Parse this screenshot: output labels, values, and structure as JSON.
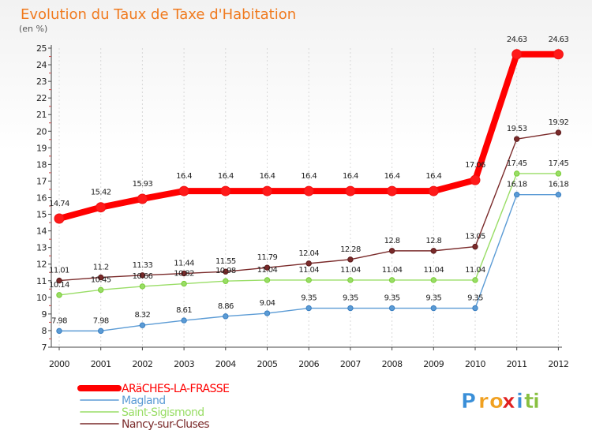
{
  "chart_data": {
    "type": "line",
    "title": "Evolution du Taux de Taxe d'Habitation",
    "unit_label": "(en %)",
    "categories": [
      "2000",
      "2001",
      "2002",
      "2003",
      "2004",
      "2005",
      "2006",
      "2007",
      "2008",
      "2009",
      "2010",
      "2011",
      "2012"
    ],
    "ylim": [
      7,
      25
    ],
    "yticks": [
      7,
      8,
      9,
      10,
      11,
      12,
      13,
      14,
      15,
      16,
      17,
      18,
      19,
      20,
      21,
      22,
      23,
      24,
      25
    ],
    "grid": "vertical",
    "legend_placement": "bottom-left",
    "series": [
      {
        "name": "ARäCHES-LA-FRASSE",
        "color": "#ff0000",
        "marker": "#ee1111",
        "values": [
          14.74,
          15.42,
          15.93,
          16.4,
          16.4,
          16.4,
          16.4,
          16.4,
          16.4,
          16.4,
          17.06,
          24.63,
          24.63
        ],
        "labels": [
          "14.74",
          "15.42",
          "15.93",
          "16.4",
          "16.4",
          "16.4",
          "16.4",
          "16.4",
          "16.4",
          "16.4",
          "17.06",
          "24.63",
          "24.63"
        ]
      },
      {
        "name": "Magland",
        "color": "#5b9bd5",
        "marker": "#3a7fc1",
        "values": [
          7.98,
          7.98,
          8.32,
          8.61,
          8.86,
          9.04,
          9.35,
          9.35,
          9.35,
          9.35,
          9.35,
          16.18,
          16.18
        ],
        "labels": [
          "7.98",
          "7.98",
          "8.32",
          "8.61",
          "8.86",
          "9.04",
          "9.35",
          "9.35",
          "9.35",
          "9.35",
          "9.35",
          "16.18",
          "16.18"
        ]
      },
      {
        "name": "Saint-Sigismond",
        "color": "#99dd66",
        "marker": "#77cc33",
        "values": [
          10.14,
          10.45,
          10.66,
          10.82,
          10.98,
          11.04,
          11.04,
          11.04,
          11.04,
          11.04,
          11.04,
          17.45,
          17.45
        ],
        "labels": [
          "10.14",
          "10.45",
          "10.66",
          "10.82",
          "10.98",
          "11.04",
          "11.04",
          "11.04",
          "11.04",
          "11.04",
          "11.04",
          "17.45",
          "17.45"
        ]
      },
      {
        "name": "Nancy-sur-Cluses",
        "color": "#7a2a2a",
        "marker": "#5c1a1a",
        "values": [
          11.01,
          11.2,
          11.33,
          11.44,
          11.55,
          11.79,
          12.04,
          12.28,
          12.8,
          12.8,
          13.05,
          19.53,
          19.92
        ],
        "labels": [
          "11.01",
          "11.2",
          "11.33",
          "11.44",
          "11.55",
          "11.79",
          "12.04",
          "12.28",
          "12.8",
          "12.8",
          "13.05",
          "19.53",
          "19.92"
        ]
      }
    ]
  },
  "logo": {
    "letters": [
      "P",
      "r",
      "o",
      "x",
      "i",
      "t",
      "i"
    ],
    "colors": [
      "#3a8fd8",
      "#f0a020",
      "#f0a020",
      "#e02020",
      "#3a8fd8",
      "#88c040",
      "#88c040"
    ]
  }
}
